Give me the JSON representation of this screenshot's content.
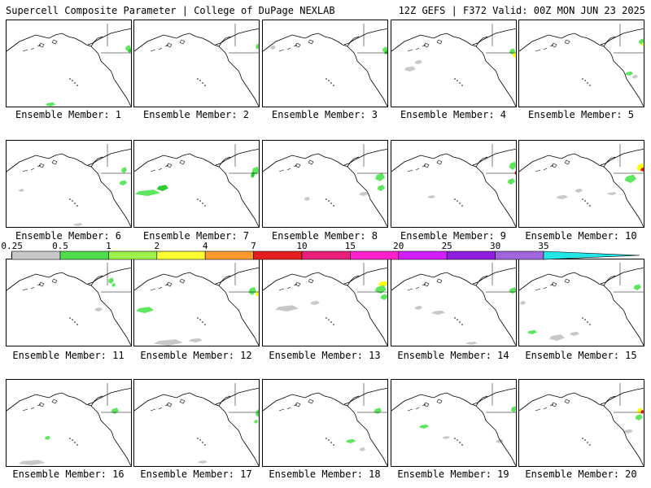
{
  "header": {
    "left": "Supercell Composite Parameter | College of DuPage NEXLAB",
    "right": "12Z GEFS | F372 Valid: 00Z MON JUN 23 2025"
  },
  "colors": {
    "green_light": "#5ee65e",
    "green_dark": "#2ecc2e",
    "yellow": "#ffff00",
    "orange": "#ff9900",
    "red": "#ff0000",
    "gray": "#c8c8c8"
  },
  "legend": {
    "values": [
      "0.25",
      "0.5",
      "1",
      "2",
      "4",
      "7",
      "10",
      "15",
      "20",
      "25",
      "30",
      "35"
    ],
    "colors": [
      "#ffffff",
      "#c8c8c8",
      "#4ddd4d",
      "#9cf24a",
      "#ffff33",
      "#ff9a2e",
      "#e81e1e",
      "#e81e78",
      "#ff22cc",
      "#d21eff",
      "#8c1edc",
      "#a064dc",
      "#22e6e6"
    ]
  },
  "members": [
    {
      "label": "Ensemble Member: 1"
    },
    {
      "label": "Ensemble Member: 2"
    },
    {
      "label": "Ensemble Member: 3"
    },
    {
      "label": "Ensemble Member: 4"
    },
    {
      "label": "Ensemble Member: 5"
    },
    {
      "label": "Ensemble Member: 6"
    },
    {
      "label": "Ensemble Member: 7"
    },
    {
      "label": "Ensemble Member: 8"
    },
    {
      "label": "Ensemble Member: 9"
    },
    {
      "label": "Ensemble Member: 10"
    },
    {
      "label": "Ensemble Member: 11"
    },
    {
      "label": "Ensemble Member: 12"
    },
    {
      "label": "Ensemble Member: 13"
    },
    {
      "label": "Ensemble Member: 14"
    },
    {
      "label": "Ensemble Member: 15"
    },
    {
      "label": "Ensemble Member: 16"
    },
    {
      "label": "Ensemble Member: 17"
    },
    {
      "label": "Ensemble Member: 18"
    },
    {
      "label": "Ensemble Member: 19"
    },
    {
      "label": "Ensemble Member: 20"
    }
  ]
}
